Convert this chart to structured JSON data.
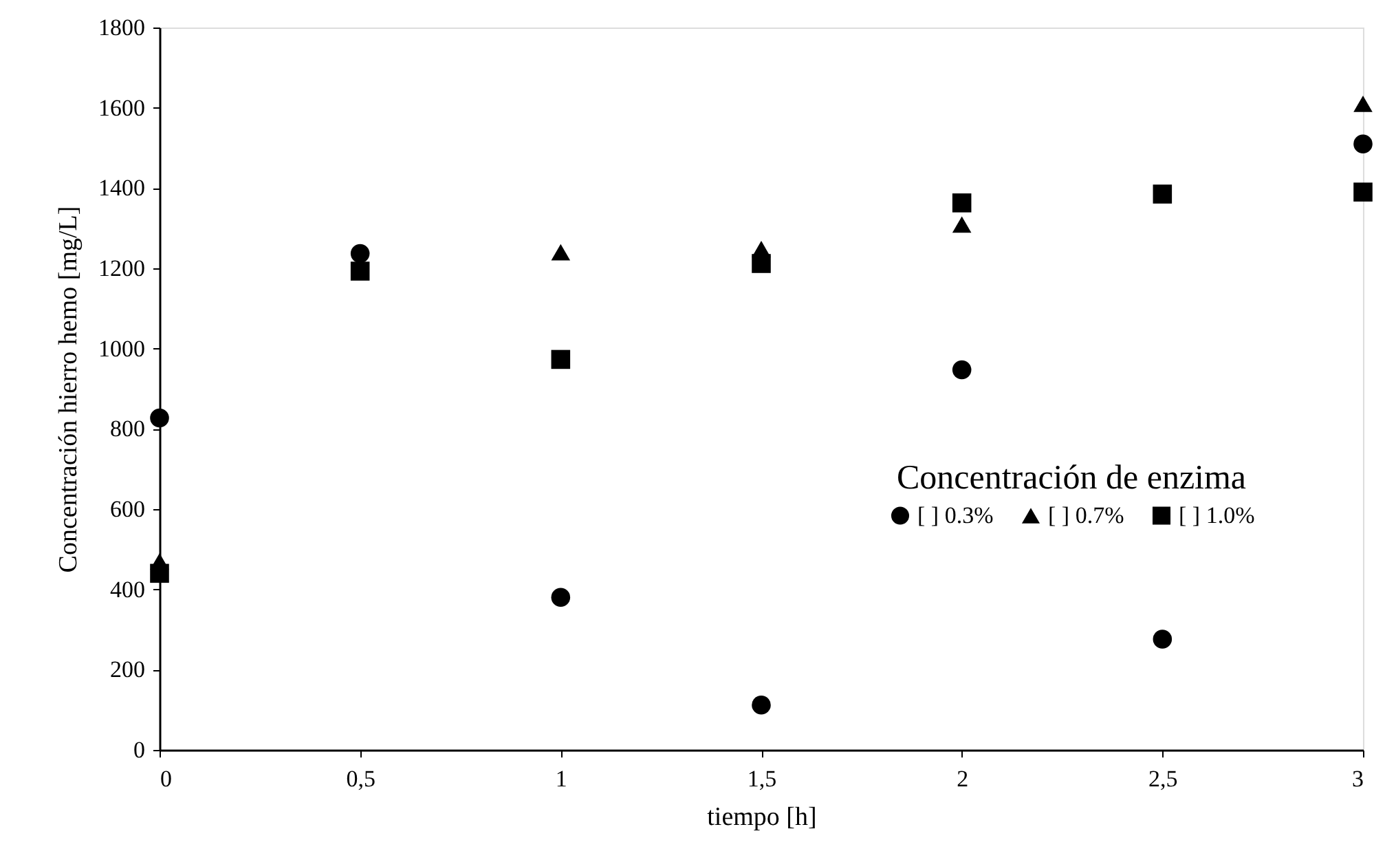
{
  "chart_data": {
    "type": "scatter",
    "xlabel": "tiempo [h]",
    "ylabel": "Concentración hierro hemo [mg/L]",
    "legend_title": "Concentración de enzima",
    "legend": "right",
    "x": [
      0,
      0.5,
      1,
      1.5,
      2,
      2.5,
      3
    ],
    "xlim": [
      0,
      3
    ],
    "xticks": [
      0,
      {
        "value": 0.5,
        "label": "0,5"
      },
      1,
      {
        "value": 1.5,
        "label": "1,5"
      },
      2,
      {
        "value": 2.5,
        "label": "2,5"
      },
      3
    ],
    "ylim": [
      0,
      1800
    ],
    "yticks": [
      0,
      200,
      400,
      600,
      800,
      1000,
      1200,
      1400,
      1600,
      1800
    ],
    "grid": false,
    "series": [
      {
        "name": "[ ] 0.3%",
        "color": "#000000",
        "marker": "circle",
        "values": [
          827,
          1237,
          380,
          112,
          947,
          276,
          1510
        ]
      },
      {
        "name": "[ ] 0.7%",
        "color": "#000000",
        "marker": "triangle",
        "values": [
          470,
          null,
          1240,
          1248,
          1309,
          null,
          1610
        ]
      },
      {
        "name": "[ ] 1.0%",
        "color": "#000000",
        "marker": "square",
        "values": [
          440,
          1193,
          973,
          1212,
          1363,
          1385,
          1390
        ]
      }
    ]
  }
}
